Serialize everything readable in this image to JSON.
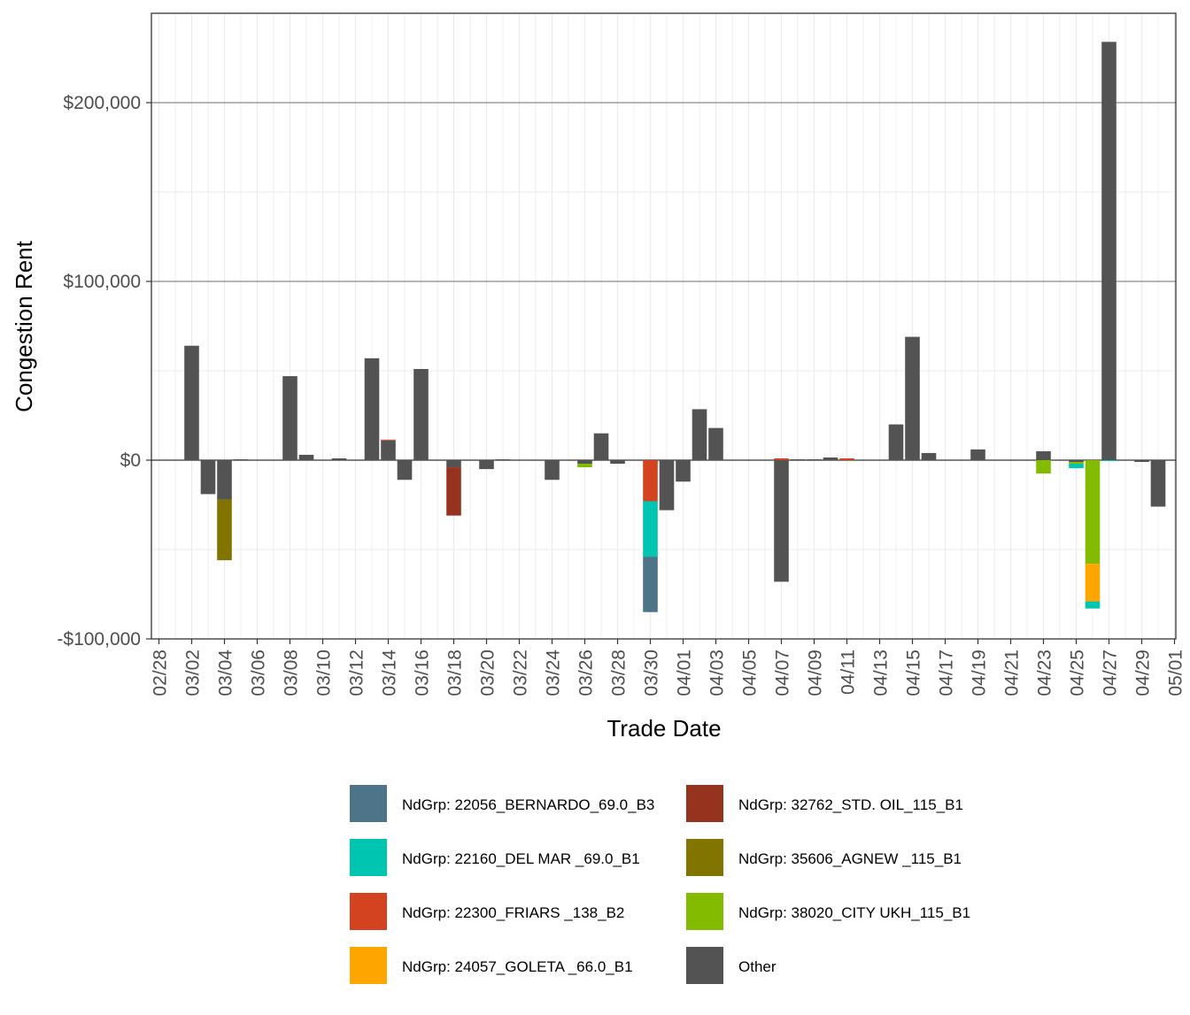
{
  "chart_data": {
    "type": "bar",
    "stacked": true,
    "xlabel": "Trade Date",
    "ylabel": "Congestion Rent",
    "ylim": [
      -100000,
      250000
    ],
    "grid": true,
    "legend_position": "bottom",
    "x_tick_labels": [
      "02/28",
      "03/02",
      "03/04",
      "03/06",
      "03/08",
      "03/10",
      "03/12",
      "03/14",
      "03/16",
      "03/18",
      "03/20",
      "03/22",
      "03/24",
      "03/26",
      "03/28",
      "03/30",
      "04/01",
      "04/03",
      "04/05",
      "04/07",
      "04/09",
      "04/11",
      "04/13",
      "04/15",
      "04/17",
      "04/19",
      "04/21",
      "04/23",
      "04/25",
      "04/27",
      "04/29",
      "05/01"
    ],
    "y_tick_labels": [
      {
        "value": -100000,
        "label": "-$100,000"
      },
      {
        "value": 0,
        "label": "$0"
      },
      {
        "value": 100000,
        "label": "$100,000"
      },
      {
        "value": 200000,
        "label": "$200,000"
      }
    ],
    "series": [
      {
        "name": "NdGrp: 22056_BERNARDO_69.0_B3",
        "color": "#4E7489",
        "values": {
          "03/30": -31000
        }
      },
      {
        "name": "NdGrp: 22160_DEL MAR _69.0_B1",
        "color": "#00C5B0",
        "values": {
          "03/30": -31000,
          "04/25": -2500,
          "04/26": -4000,
          "04/27": -500
        }
      },
      {
        "name": "NdGrp: 22300_FRIARS _138_B2",
        "color": "#D34320",
        "values": {
          "03/14": 500,
          "03/30": -23000,
          "04/07": 1000,
          "04/11": 1000
        }
      },
      {
        "name": "NdGrp: 24057_GOLETA _66.0_B1",
        "color": "#FFA500",
        "values": {
          "04/26": -21000
        }
      },
      {
        "name": "NdGrp: 32762_STD. OIL_115_B1",
        "color": "#96331F",
        "values": {
          "03/18": -27000
        }
      },
      {
        "name": "NdGrp: 35606_AGNEW _115_B1",
        "color": "#817400",
        "values": {
          "03/04": -34000
        }
      },
      {
        "name": "NdGrp: 38020_CITY UKH_115_B1",
        "color": "#83BB00",
        "values": {
          "03/26": -2000,
          "04/23": -7500,
          "04/25": -1000,
          "04/26": -58000
        }
      },
      {
        "name": "Other",
        "color": "#535353",
        "values": {
          "03/02": 64000,
          "03/03": -19000,
          "03/04": -22000,
          "03/05": 500,
          "03/08": 47000,
          "03/09": 3000,
          "03/11": 1000,
          "03/13": 57000,
          "03/14": 11000,
          "03/15": -11000,
          "03/16": 51000,
          "03/18": -4000,
          "03/20": -5000,
          "03/21": 500,
          "03/24": -11000,
          "03/26": -2000,
          "03/27": 15000,
          "03/28": -2000,
          "03/31": -28000,
          "04/01": -12000,
          "04/02": 28500,
          "04/03": 18000,
          "04/07": -68000,
          "04/08": 500,
          "04/09": 500,
          "04/10": 1500,
          "04/14": 20000,
          "04/15": 69000,
          "04/16": 4000,
          "04/19": 6000,
          "04/23": 5000,
          "04/25": -1000,
          "04/27": 234000,
          "04/29": -1000,
          "04/30": -26000
        }
      }
    ]
  }
}
